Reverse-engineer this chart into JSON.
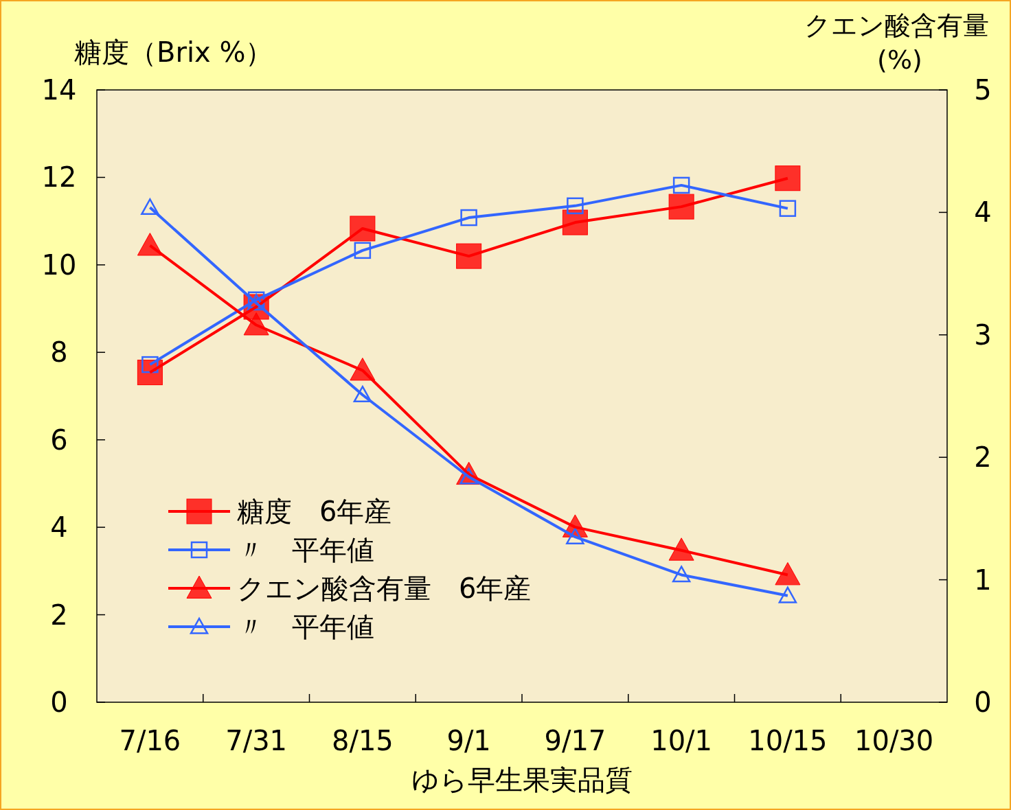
{
  "chart_data": {
    "type": "line",
    "xlabel": "ゆら早生果実品質",
    "ylabel": "糖度（Brix %）",
    "y2label": "クエン酸含有量 (%)",
    "categories": [
      "7/16",
      "7/31",
      "8/15",
      "9/1",
      "9/17",
      "10/1",
      "10/15",
      "10/30"
    ],
    "ylim": [
      0,
      14
    ],
    "yticks": [
      0,
      2,
      4,
      6,
      8,
      10,
      12,
      14
    ],
    "y2lim": [
      0,
      5
    ],
    "y2ticks": [
      0,
      1,
      2,
      3,
      4,
      5
    ],
    "legend": "bottom left",
    "grid": false,
    "series": [
      {
        "name": "糖度　6年産",
        "color": "#ff0000",
        "marker": "square",
        "values": [
          7.54,
          9.04,
          10.83,
          10.2,
          10.97,
          11.33,
          11.98,
          null
        ]
      },
      {
        "name": "〃　平年値",
        "color": "#3366ff",
        "marker": "square",
        "values": [
          7.72,
          9.2,
          10.33,
          11.08,
          11.35,
          11.82,
          11.29,
          null
        ]
      },
      {
        "name": "クエン酸含有量　6年産",
        "color": "#ff0000",
        "marker": "triangle",
        "axis": "y2",
        "values": [
          3.73,
          3.08,
          2.71,
          1.86,
          1.43,
          1.24,
          1.04,
          null
        ]
      },
      {
        "name": "〃　平年値",
        "color": "#3366ff",
        "marker": "triangle",
        "axis": "y2",
        "values": [
          4.04,
          3.26,
          2.51,
          1.84,
          1.35,
          1.04,
          0.87,
          null
        ]
      }
    ]
  }
}
